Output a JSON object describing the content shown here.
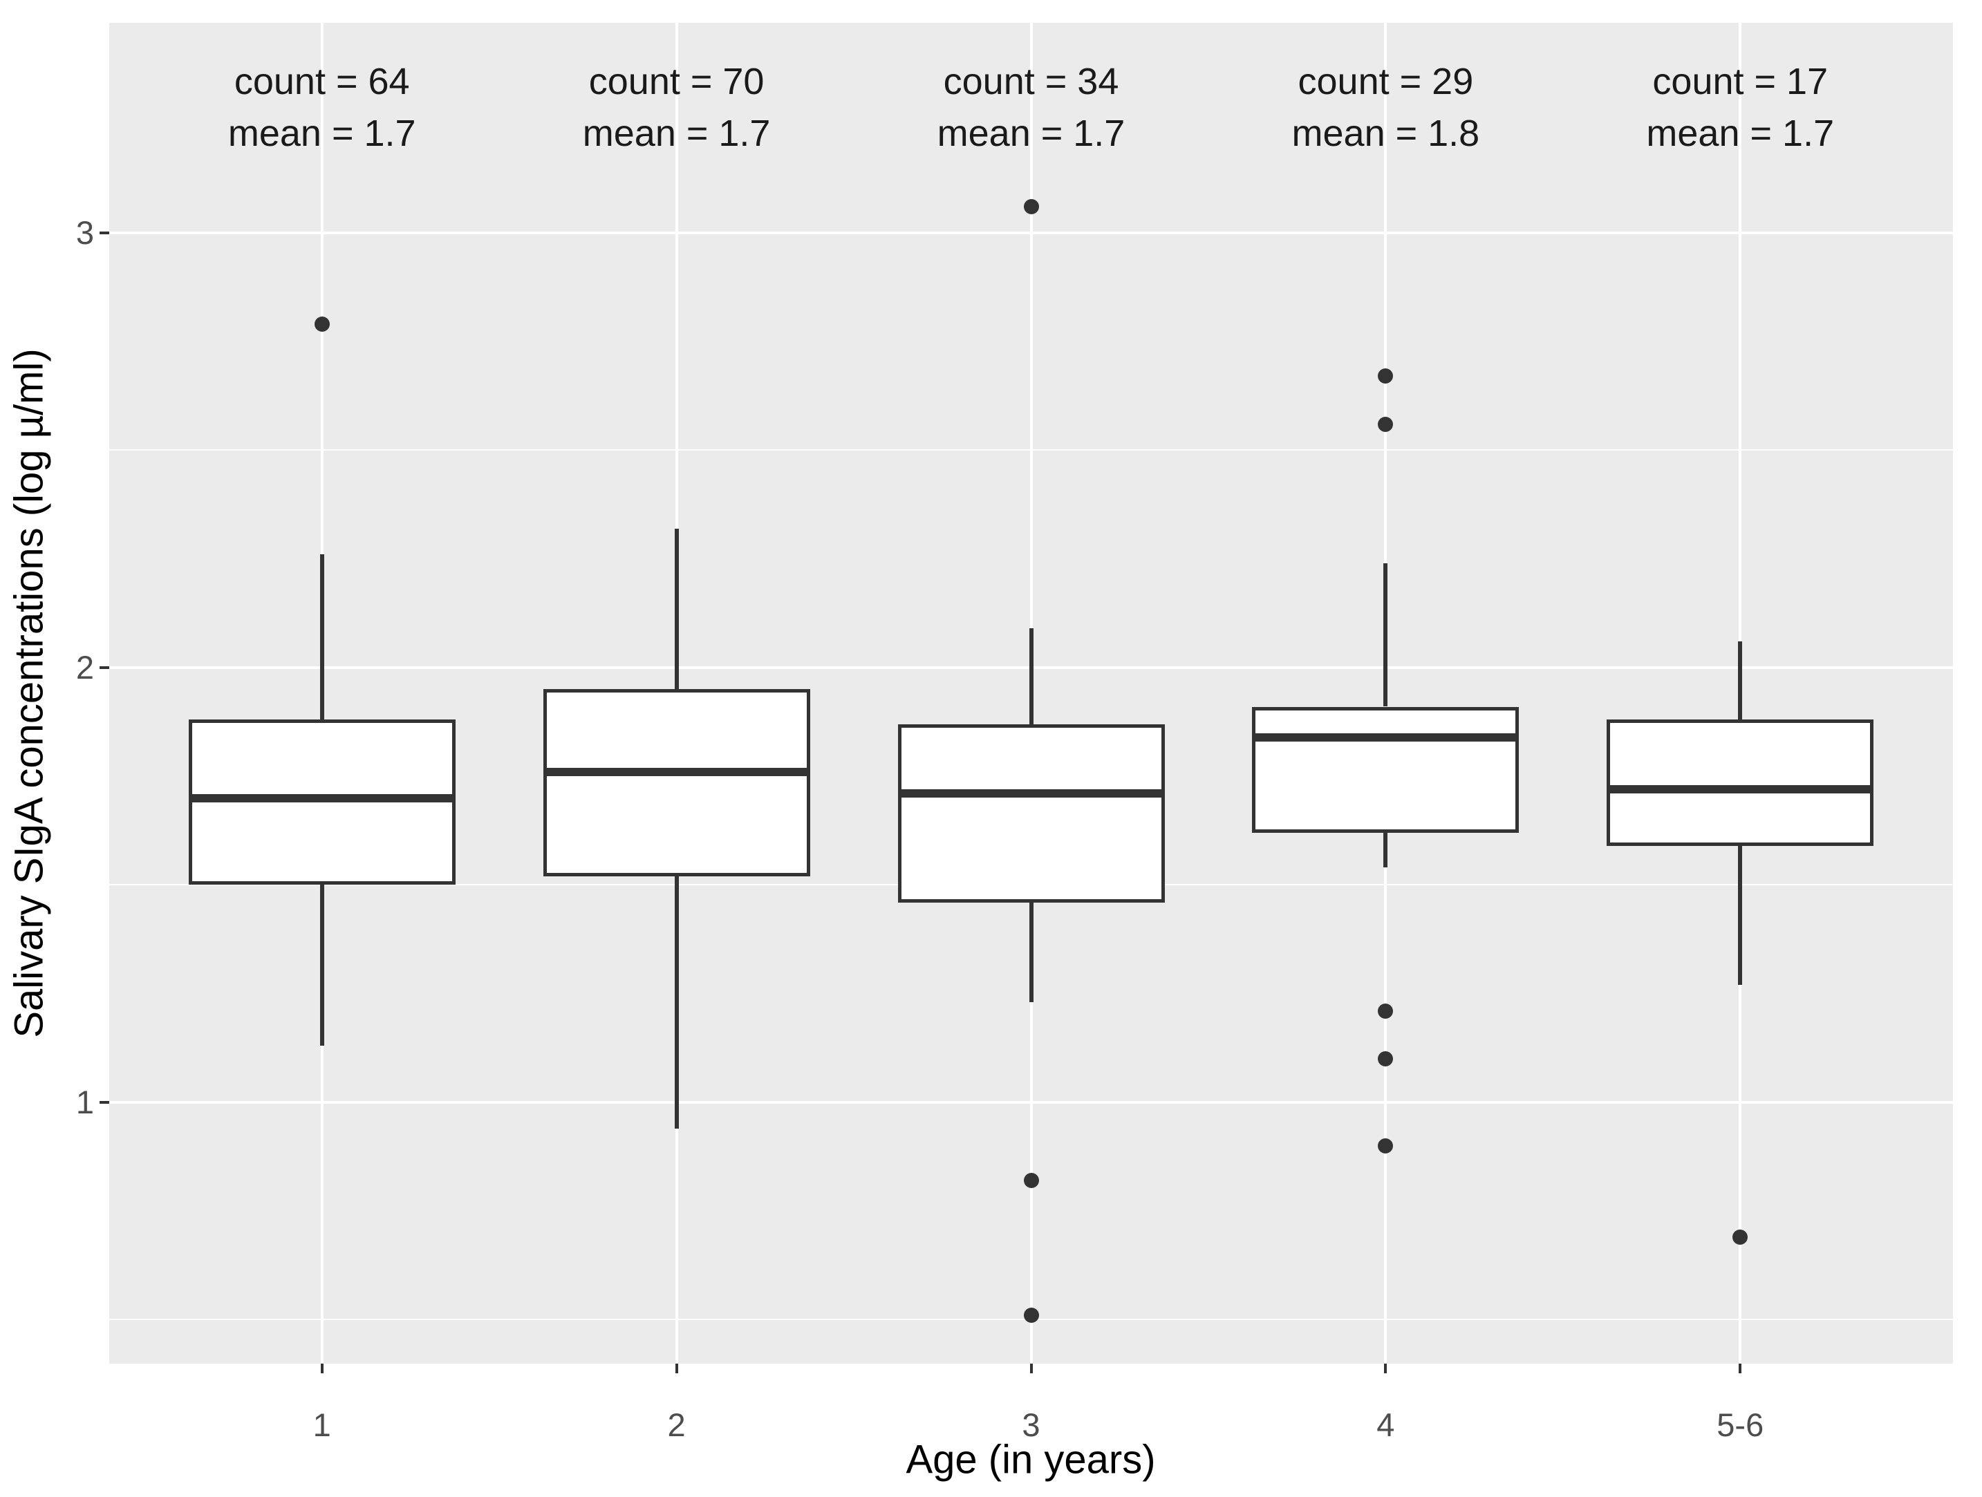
{
  "chart_data": {
    "type": "boxplot",
    "title": "",
    "xlabel": "Age (in years)",
    "ylabel": "Salivary SIgA concentrations (log µ/ml)",
    "categories": [
      "1",
      "2",
      "3",
      "4",
      "5-6"
    ],
    "y_tick_labels": [
      "1",
      "2",
      "3"
    ],
    "y_ticks": [
      1,
      2,
      3
    ],
    "ylim": [
      0.4,
      3.48
    ],
    "grid": {
      "major": [
        1,
        2,
        3
      ],
      "minor": [
        0.5,
        1.5,
        2.5
      ],
      "visible": true
    },
    "legend": "none",
    "annotation_labels": {
      "count_prefix": "count = ",
      "mean_prefix": "mean = "
    },
    "series": [
      {
        "category": "1",
        "count": 64,
        "mean": "1.7",
        "whisker_low": 1.13,
        "q1": 1.5,
        "median": 1.7,
        "q3": 1.88,
        "whisker_high": 2.26,
        "outliers": [
          2.79
        ]
      },
      {
        "category": "2",
        "count": 70,
        "mean": "1.7",
        "whisker_low": 0.94,
        "q1": 1.52,
        "median": 1.76,
        "q3": 1.95,
        "whisker_high": 2.32,
        "outliers": []
      },
      {
        "category": "3",
        "count": 34,
        "mean": "1.7",
        "whisker_low": 1.23,
        "q1": 1.46,
        "median": 1.71,
        "q3": 1.87,
        "whisker_high": 2.09,
        "outliers": [
          3.06,
          0.82,
          0.51
        ]
      },
      {
        "category": "4",
        "count": 29,
        "mean": "1.8",
        "whisker_low": 1.54,
        "q1": 1.62,
        "median": 1.84,
        "q3": 1.91,
        "whisker_high": 2.24,
        "outliers": [
          2.67,
          2.56,
          1.21,
          1.1,
          0.9
        ]
      },
      {
        "category": "5-6",
        "count": 17,
        "mean": "1.7",
        "whisker_low": 1.27,
        "q1": 1.59,
        "median": 1.72,
        "q3": 1.88,
        "whisker_high": 2.06,
        "outliers": [
          0.69
        ]
      }
    ],
    "colors": {
      "panel_background": "#EBEBEB",
      "gridline": "#FFFFFF",
      "box_border": "#333333",
      "box_fill": "#FFFFFF",
      "median_line": "#333333",
      "outlier_point": "#333333",
      "tick_label": "#4D4D4D",
      "axis_title": "#000000",
      "annotation_text": "#1A1A1A"
    }
  }
}
